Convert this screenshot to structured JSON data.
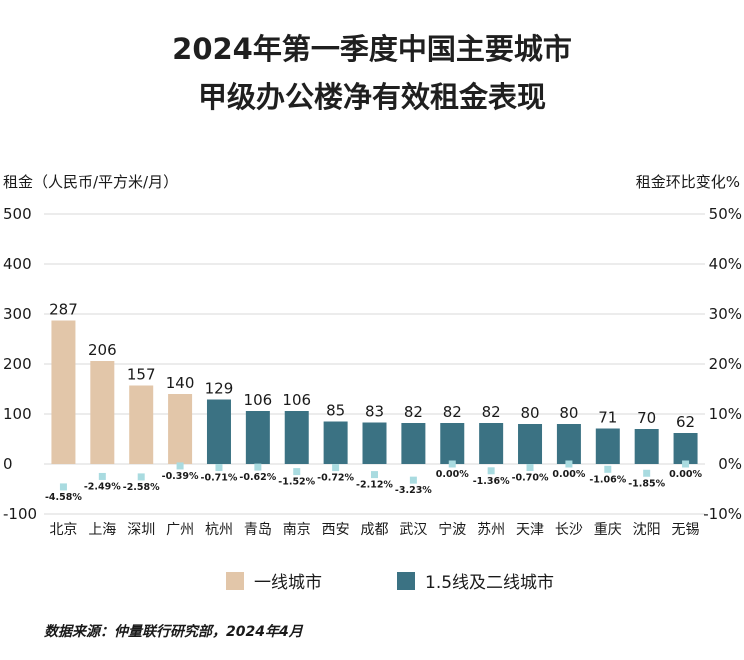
{
  "title_line1": "2024年第一季度中国主要城市",
  "title_line2": "甲级办公楼净有效租金表现",
  "source": "数据来源：仲量联行研究部，2024年4月",
  "colors": {
    "tier1": "#e2c6a9",
    "tier2": "#3b7283",
    "marker": "#a9dbe0",
    "grid": "#d9d9d9"
  },
  "chart_data": {
    "type": "bar",
    "categories": [
      "北京",
      "上海",
      "深圳",
      "广州",
      "杭州",
      "青岛",
      "南京",
      "西安",
      "成都",
      "武汉",
      "宁波",
      "苏州",
      "天津",
      "长沙",
      "重庆",
      "沈阳",
      "无锡"
    ],
    "series": [
      {
        "name": "一线城市",
        "values": [
          287,
          206,
          157,
          140,
          null,
          null,
          null,
          null,
          null,
          null,
          null,
          null,
          null,
          null,
          null,
          null,
          null
        ]
      },
      {
        "name": "1.5线及二线城市",
        "values": [
          null,
          null,
          null,
          null,
          129,
          106,
          106,
          85,
          83,
          82,
          82,
          82,
          80,
          80,
          71,
          70,
          62
        ]
      }
    ],
    "rent_change_pct": [
      -4.58,
      -2.49,
      -2.58,
      -0.39,
      -0.71,
      -0.62,
      -1.52,
      -0.72,
      -2.12,
      -3.23,
      0.0,
      -1.36,
      -0.7,
      0.0,
      -1.06,
      -1.85,
      0.0
    ],
    "rent_change_labels": [
      "-4.58%",
      "-2.49%",
      "-2.58%",
      "-0.39%",
      "-0.71%",
      "-0.62%",
      "-1.52%",
      "-0.72%",
      "-2.12%",
      "-3.23%",
      "0.00%",
      "-1.36%",
      "-0.70%",
      "0.00%",
      "-1.06%",
      "-1.85%",
      "0.00%"
    ],
    "ylabel": "租金（人民币/平方米/月）",
    "y2label": "租金环比变化%",
    "ylim": [
      -100,
      500
    ],
    "yticks": [
      "-100",
      "0",
      "100",
      "200",
      "300",
      "400",
      "500"
    ],
    "y2lim": [
      -10,
      50
    ],
    "y2ticks": [
      "-10%",
      "0%",
      "10%",
      "20%",
      "30%",
      "40%",
      "50%"
    ],
    "legend_placement": "bottom",
    "grid": true
  }
}
